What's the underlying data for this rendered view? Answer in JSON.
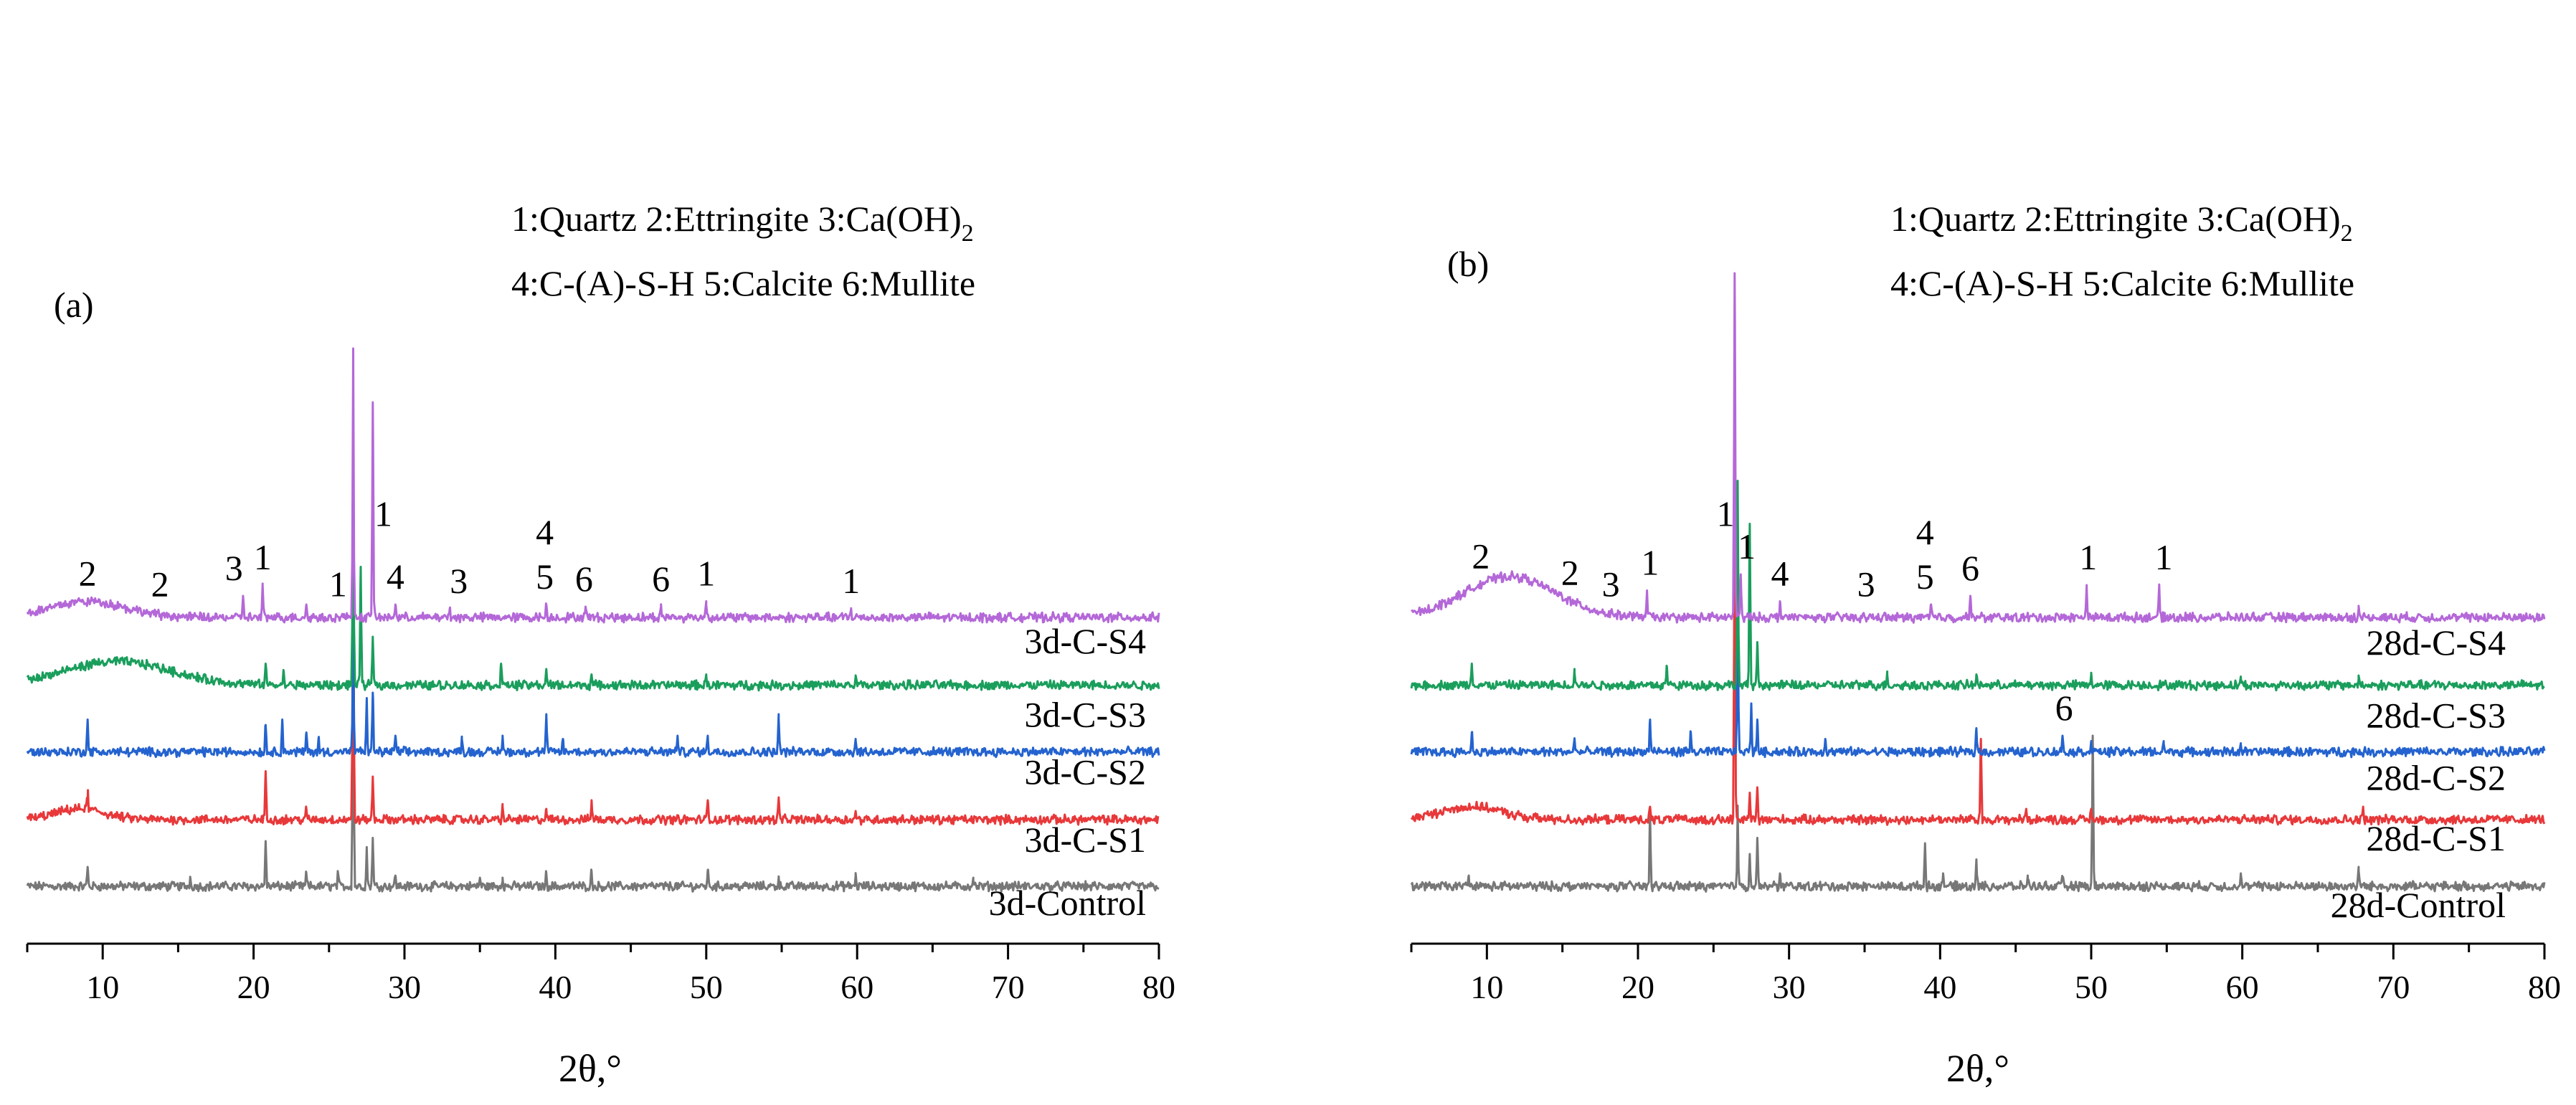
{
  "chart_data": [
    {
      "type": "line",
      "panel": "(a)",
      "xlabel": "2θ,°",
      "ylabel": "",
      "xlim": [
        5,
        80
      ],
      "xticks": [
        10,
        20,
        30,
        40,
        50,
        60,
        70,
        80
      ],
      "legend": {
        "line1": "1:Quartz 2:Ettringite   3:Ca(OH)",
        "line1_sub": "2",
        "line2": "4:C-(A)-S-H  5:Calcite 6:Mullite"
      },
      "series": [
        {
          "name": "3d-Control",
          "color": "#777777",
          "baseline": 0,
          "hump": null,
          "peaks": [
            [
              9.0,
              0.18
            ],
            [
              15.8,
              0.08
            ],
            [
              20.8,
              0.42
            ],
            [
              23.5,
              0.12
            ],
            [
              25.6,
              0.12
            ],
            [
              26.6,
              3.0
            ],
            [
              27.5,
              0.35
            ],
            [
              27.9,
              0.45
            ],
            [
              29.4,
              0.1
            ],
            [
              35.0,
              0.08
            ],
            [
              36.5,
              0.08
            ],
            [
              39.4,
              0.12
            ],
            [
              42.4,
              0.14
            ],
            [
              50.1,
              0.15
            ],
            [
              54.8,
              0.08
            ],
            [
              59.9,
              0.1
            ],
            [
              67.7,
              0.08
            ]
          ]
        },
        {
          "name": "3d-C-S1",
          "color": "#e8383a",
          "baseline": 0.62,
          "hump": [
            8.5,
            1.6,
            0.1
          ],
          "peaks": [
            [
              9.0,
              0.18
            ],
            [
              20.8,
              0.45
            ],
            [
              23.5,
              0.1
            ],
            [
              26.6,
              3.0
            ],
            [
              27.9,
              0.4
            ],
            [
              36.5,
              0.12
            ],
            [
              39.4,
              0.1
            ],
            [
              42.4,
              0.18
            ],
            [
              50.1,
              0.18
            ],
            [
              54.8,
              0.2
            ],
            [
              59.9,
              0.08
            ]
          ]
        },
        {
          "name": "3d-C-S2",
          "color": "#2463cf",
          "baseline": 1.25,
          "hump": null,
          "peaks": [
            [
              9.0,
              0.3
            ],
            [
              20.8,
              0.25
            ],
            [
              21.9,
              0.3
            ],
            [
              23.5,
              0.18
            ],
            [
              24.3,
              0.12
            ],
            [
              26.6,
              1.2
            ],
            [
              27.5,
              0.5
            ],
            [
              27.9,
              0.55
            ],
            [
              29.4,
              0.15
            ],
            [
              33.8,
              0.12
            ],
            [
              36.5,
              0.15
            ],
            [
              39.4,
              0.35
            ],
            [
              40.5,
              0.12
            ],
            [
              48.1,
              0.15
            ],
            [
              50.1,
              0.15
            ],
            [
              54.8,
              0.35
            ],
            [
              59.9,
              0.12
            ]
          ]
        },
        {
          "name": "3d-C-S3",
          "color": "#1a9e5c",
          "baseline": 1.87,
          "hump": [
            11,
            3.5,
            0.22
          ],
          "peaks": [
            [
              20.8,
              0.2
            ],
            [
              22.0,
              0.12
            ],
            [
              26.6,
              2.4
            ],
            [
              27.1,
              1.1
            ],
            [
              27.9,
              0.45
            ],
            [
              36.4,
              0.2
            ],
            [
              39.4,
              0.15
            ],
            [
              42.4,
              0.1
            ],
            [
              50.0,
              0.1
            ],
            [
              59.9,
              0.08
            ]
          ]
        },
        {
          "name": "3d-C-S4",
          "color": "#b468d8",
          "baseline": 2.5,
          "hump": [
            9,
            2.5,
            0.15
          ],
          "peaks": [
            [
              19.3,
              0.2
            ],
            [
              20.6,
              0.3
            ],
            [
              23.5,
              0.12
            ],
            [
              26.6,
              2.5
            ],
            [
              27.9,
              2.0
            ],
            [
              29.4,
              0.12
            ],
            [
              33.0,
              0.08
            ],
            [
              39.4,
              0.12
            ],
            [
              42.0,
              0.1
            ],
            [
              47.0,
              0.1
            ],
            [
              50.0,
              0.15
            ],
            [
              59.6,
              0.08
            ]
          ]
        }
      ],
      "curve_labels": [
        "3d-Control",
        "3d-C-S1",
        "3d-C-S2",
        "3d-C-S3",
        "3d-C-S4"
      ],
      "peak_annotations": [
        {
          "text": "2",
          "x": 9.0,
          "series": "3d-C-S4"
        },
        {
          "text": "2",
          "x": 13.8,
          "series": "3d-C-S4"
        },
        {
          "text": "3",
          "x": 18.7,
          "series": "3d-C-S4"
        },
        {
          "text": "1",
          "x": 20.6,
          "series": "3d-C-S4"
        },
        {
          "text": "1",
          "x": 25.6,
          "series": "3d-C-S4"
        },
        {
          "text": "1",
          "x": 28.6,
          "series": "3d-C-S4"
        },
        {
          "text": "4",
          "x": 29.4,
          "series": "3d-C-S4"
        },
        {
          "text": "3",
          "x": 33.6,
          "series": "3d-C-S4"
        },
        {
          "text": "4",
          "x": 39.3,
          "series": "3d-C-S4"
        },
        {
          "text": "5",
          "x": 39.3,
          "series": "3d-C-S4"
        },
        {
          "text": "6",
          "x": 41.9,
          "series": "3d-C-S4"
        },
        {
          "text": "6",
          "x": 47.0,
          "series": "3d-C-S4"
        },
        {
          "text": "1",
          "x": 50.0,
          "series": "3d-C-S4"
        },
        {
          "text": "1",
          "x": 59.6,
          "series": "3d-C-S4"
        }
      ]
    },
    {
      "type": "line",
      "panel": "(b)",
      "xlabel": "2θ,°",
      "ylabel": "",
      "xlim": [
        5,
        80
      ],
      "xticks": [
        10,
        20,
        30,
        40,
        50,
        60,
        70,
        80
      ],
      "legend": {
        "line1": "1:Quartz 2:Ettringite   3:Ca(OH)",
        "line1_sub": "2",
        "line2": "4:C-(A)-S-H  5:Calcite 6:Mullite"
      },
      "series": [
        {
          "name": "28d-Control",
          "color": "#777777",
          "baseline": 0,
          "hump": null,
          "peaks": [
            [
              8.8,
              0.1
            ],
            [
              20.8,
              0.7
            ],
            [
              26.6,
              0.75
            ],
            [
              27.4,
              0.3
            ],
            [
              27.9,
              0.45
            ],
            [
              29.4,
              0.12
            ],
            [
              39.0,
              0.4
            ],
            [
              40.2,
              0.12
            ],
            [
              42.4,
              0.25
            ],
            [
              45.8,
              0.1
            ],
            [
              48.1,
              0.08
            ],
            [
              50.1,
              1.4
            ],
            [
              59.9,
              0.12
            ],
            [
              67.7,
              0.18
            ]
          ]
        },
        {
          "name": "28d-C-S1",
          "color": "#e8383a",
          "baseline": 0.62,
          "hump": [
            9,
            2.0,
            0.12
          ],
          "peaks": [
            [
              20.8,
              0.12
            ],
            [
              26.4,
              3.0
            ],
            [
              27.4,
              0.25
            ],
            [
              27.9,
              0.3
            ],
            [
              42.7,
              0.75
            ],
            [
              45.7,
              0.1
            ],
            [
              50.0,
              0.1
            ],
            [
              68.0,
              0.12
            ]
          ]
        },
        {
          "name": "28d-C-S2",
          "color": "#2463cf",
          "baseline": 1.25,
          "hump": null,
          "peaks": [
            [
              9.0,
              0.18
            ],
            [
              15.8,
              0.12
            ],
            [
              20.8,
              0.3
            ],
            [
              23.5,
              0.18
            ],
            [
              26.6,
              1.55
            ],
            [
              27.5,
              0.45
            ],
            [
              27.9,
              0.3
            ],
            [
              32.4,
              0.12
            ],
            [
              42.4,
              0.22
            ],
            [
              48.1,
              0.15
            ],
            [
              50.0,
              0.1
            ],
            [
              54.8,
              0.1
            ],
            [
              59.9,
              0.08
            ]
          ]
        },
        {
          "name": "28d-C-S3",
          "color": "#1a9e5c",
          "baseline": 1.87,
          "hump": null,
          "peaks": [
            [
              9.0,
              0.2
            ],
            [
              15.8,
              0.15
            ],
            [
              21.9,
              0.18
            ],
            [
              26.6,
              1.9
            ],
            [
              27.4,
              1.5
            ],
            [
              27.9,
              0.4
            ],
            [
              36.5,
              0.1
            ],
            [
              42.4,
              0.1
            ],
            [
              50.0,
              0.1
            ],
            [
              59.9,
              0.08
            ],
            [
              67.7,
              0.06
            ]
          ]
        },
        {
          "name": "28d-C-S4",
          "color": "#b468d8",
          "baseline": 2.5,
          "hump": [
            11.5,
            3.0,
            0.38
          ],
          "peaks": [
            [
              20.6,
              0.25
            ],
            [
              26.4,
              3.2
            ],
            [
              26.8,
              0.4
            ],
            [
              29.4,
              0.15
            ],
            [
              39.4,
              0.12
            ],
            [
              42.0,
              0.2
            ],
            [
              49.7,
              0.3
            ],
            [
              54.5,
              0.3
            ],
            [
              67.7,
              0.08
            ]
          ]
        }
      ],
      "curve_labels": [
        "28d-Control",
        "28d-C-S1",
        "28d-C-S2",
        "28d-C-S3",
        "28d-C-S4"
      ],
      "peak_annotations": [
        {
          "text": "2",
          "x": 9.6,
          "series": "28d-C-S4"
        },
        {
          "text": "2",
          "x": 15.5,
          "series": "28d-C-S4"
        },
        {
          "text": "3",
          "x": 18.2,
          "series": "28d-C-S4"
        },
        {
          "text": "1",
          "x": 20.8,
          "series": "28d-C-S4"
        },
        {
          "text": "1",
          "x": 25.8,
          "series": "28d-C-S4"
        },
        {
          "text": "1",
          "x": 27.2,
          "series": "28d-C-S4"
        },
        {
          "text": "4",
          "x": 29.4,
          "series": "28d-C-S4"
        },
        {
          "text": "3",
          "x": 35.1,
          "series": "28d-C-S4"
        },
        {
          "text": "4",
          "x": 39.0,
          "series": "28d-C-S4"
        },
        {
          "text": "5",
          "x": 39.0,
          "series": "28d-C-S4"
        },
        {
          "text": "6",
          "x": 42.0,
          "series": "28d-C-S4"
        },
        {
          "text": "1",
          "x": 49.8,
          "series": "28d-C-S4"
        },
        {
          "text": "1",
          "x": 54.8,
          "series": "28d-C-S4"
        },
        {
          "text": "6",
          "x": 48.2,
          "series": "28d-C-S2"
        }
      ]
    }
  ]
}
